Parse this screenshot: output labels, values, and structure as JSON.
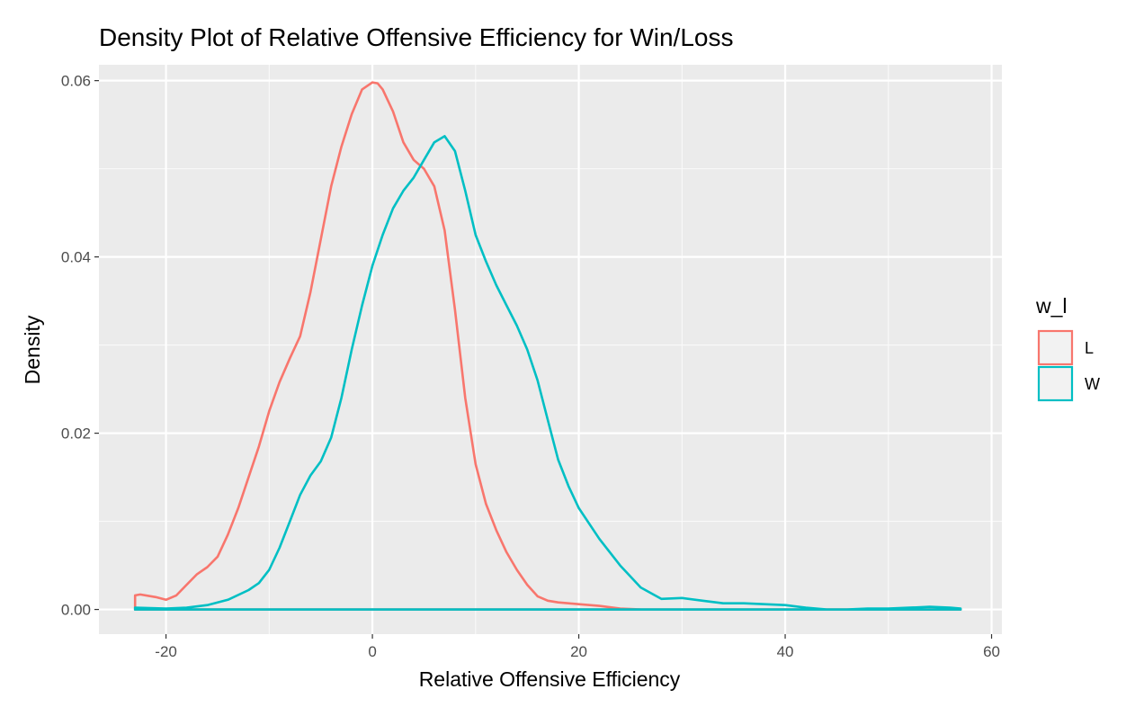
{
  "chart_data": {
    "type": "line",
    "title": "Density Plot of Relative Offensive Efficiency for Win/Loss",
    "xlabel": "Relative Offensive Efficiency",
    "ylabel": "Density",
    "xlim": [
      -26.5,
      61
    ],
    "ylim": [
      -0.0028,
      0.0618
    ],
    "x_ticks": [
      -20,
      0,
      20,
      40,
      60
    ],
    "x_tick_labels": [
      "-20",
      "0",
      "20",
      "40",
      "60"
    ],
    "y_ticks": [
      0.0,
      0.02,
      0.04,
      0.06
    ],
    "y_tick_labels": [
      "0.00",
      "0.02",
      "0.04",
      "0.06"
    ],
    "grid": true,
    "panel_background": "#ebebeb",
    "legend": {
      "title": "w_l",
      "position": "right"
    },
    "series": [
      {
        "name": "L",
        "color": "#F8766D",
        "x": [
          -23,
          -22.5,
          -21,
          -20,
          -19,
          -18,
          -17,
          -16,
          -15,
          -14,
          -13,
          -12,
          -11,
          -10,
          -9,
          -8,
          -7,
          -6,
          -5,
          -4,
          -3,
          -2,
          -1,
          0,
          0.5,
          1,
          2,
          3,
          4,
          5,
          6,
          7,
          8,
          9,
          10,
          11,
          12,
          13,
          14,
          15,
          16,
          17,
          18,
          19,
          20,
          22,
          24,
          26,
          30,
          40,
          50,
          57
        ],
        "values": [
          0.0016,
          0.0017,
          0.0014,
          0.0011,
          0.0016,
          0.0028,
          0.004,
          0.0048,
          0.006,
          0.0085,
          0.0115,
          0.015,
          0.0185,
          0.0225,
          0.0258,
          0.0285,
          0.031,
          0.036,
          0.042,
          0.048,
          0.0525,
          0.0562,
          0.059,
          0.0598,
          0.0597,
          0.059,
          0.0565,
          0.053,
          0.051,
          0.05,
          0.048,
          0.043,
          0.034,
          0.024,
          0.0165,
          0.012,
          0.009,
          0.0065,
          0.0045,
          0.0028,
          0.0015,
          0.001,
          0.0008,
          0.0007,
          0.0006,
          0.0004,
          0.0001,
          0.0,
          0.0,
          0.0,
          0.0,
          0.0
        ]
      },
      {
        "name": "W",
        "color": "#00BFC4",
        "x": [
          -23,
          -20,
          -18,
          -16,
          -14,
          -12,
          -11,
          -10,
          -9,
          -8,
          -7,
          -6,
          -5,
          -4,
          -3,
          -2,
          -1,
          0,
          1,
          2,
          3,
          4,
          5,
          6,
          7,
          8,
          9,
          10,
          11,
          12,
          13,
          14,
          15,
          16,
          17,
          18,
          19,
          20,
          22,
          24,
          26,
          28,
          30,
          32,
          34,
          36,
          38,
          40,
          42,
          44,
          46,
          48,
          50,
          52,
          54,
          56,
          57
        ],
        "values": [
          0.0002,
          0.0001,
          0.0002,
          0.0005,
          0.0011,
          0.0022,
          0.003,
          0.0045,
          0.007,
          0.01,
          0.013,
          0.0152,
          0.0168,
          0.0195,
          0.024,
          0.0295,
          0.0345,
          0.039,
          0.0425,
          0.0455,
          0.0475,
          0.049,
          0.051,
          0.053,
          0.0537,
          0.052,
          0.0475,
          0.0425,
          0.0395,
          0.0368,
          0.0345,
          0.0322,
          0.0295,
          0.026,
          0.0215,
          0.017,
          0.014,
          0.0115,
          0.008,
          0.005,
          0.0025,
          0.0012,
          0.0013,
          0.001,
          0.0007,
          0.0007,
          0.0006,
          0.0005,
          0.0002,
          0.0,
          0.0,
          0.0001,
          0.0001,
          0.0002,
          0.0003,
          0.0002,
          0.0001
        ]
      }
    ]
  }
}
